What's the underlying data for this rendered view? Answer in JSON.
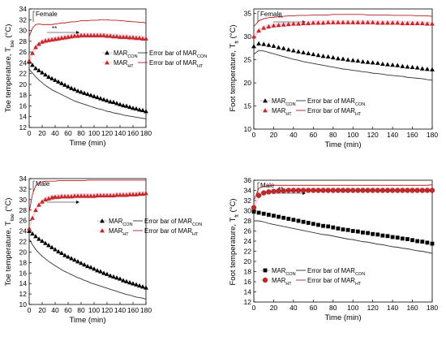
{
  "colors": {
    "con": "#000000",
    "con_err": "#333333",
    "ht": "#c62828",
    "ht_err": "#b71c1c",
    "ht_band": "#f48fb1",
    "axis": "#000000"
  },
  "chart_data": [
    {
      "type": "line",
      "panel_title": "Female",
      "sig_label": "**",
      "xlabel": "Time (min)",
      "ylabel": {
        "main": "Toe temperature, T",
        "sub": "toe",
        "unit": " (°C)"
      },
      "xlim": [
        0,
        180
      ],
      "ylim": [
        12,
        34
      ],
      "xticks": [
        0,
        20,
        40,
        60,
        80,
        100,
        120,
        140,
        160,
        180
      ],
      "yticks": [
        12,
        14,
        16,
        18,
        20,
        22,
        24,
        26,
        28,
        30,
        32,
        34
      ],
      "legend_placement": "center",
      "x": [
        0,
        5,
        10,
        15,
        20,
        25,
        30,
        35,
        40,
        45,
        50,
        55,
        60,
        65,
        70,
        75,
        80,
        85,
        90,
        95,
        100,
        105,
        110,
        115,
        120,
        125,
        130,
        135,
        140,
        145,
        150,
        155,
        160,
        165,
        170,
        175,
        180
      ],
      "series": [
        {
          "name": "MAR",
          "sub": "CON",
          "marker": "triangle",
          "role": "mean",
          "group": "con",
          "values": [
            24.2,
            23.6,
            23.0,
            22.6,
            22.2,
            21.8,
            21.4,
            21.1,
            20.8,
            20.5,
            20.2,
            19.9,
            19.6,
            19.3,
            19.1,
            18.8,
            18.6,
            18.4,
            18.2,
            18.0,
            17.8,
            17.6,
            17.4,
            17.2,
            17.0,
            16.8,
            16.7,
            16.5,
            16.3,
            16.1,
            16.0,
            15.8,
            15.6,
            15.5,
            15.3,
            15.2,
            15.0
          ]
        },
        {
          "name": "Error bar of MAR",
          "sub": "CON",
          "marker": "none",
          "role": "error",
          "group": "con",
          "values": [
            22.8,
            22.1,
            21.4,
            20.8,
            20.3,
            19.8,
            19.4,
            19.0,
            18.7,
            18.4,
            18.1,
            17.8,
            17.5,
            17.2,
            16.9,
            16.7,
            16.5,
            16.3,
            16.1,
            15.9,
            15.7,
            15.5,
            15.4,
            15.2,
            15.0,
            14.9,
            14.7,
            14.6,
            14.5,
            14.3,
            14.2,
            14.1,
            14.0,
            13.9,
            13.8,
            13.7,
            13.6
          ]
        },
        {
          "name": "MAR",
          "sub": "HT",
          "marker": "triangle",
          "role": "mean",
          "group": "ht",
          "values": [
            24.4,
            25.8,
            26.9,
            27.5,
            27.9,
            28.1,
            28.2,
            28.3,
            28.4,
            28.5,
            28.6,
            28.7,
            28.8,
            28.9,
            29.0,
            29.0,
            29.1,
            29.1,
            29.1,
            29.1,
            29.1,
            29.1,
            29.1,
            29.1,
            29.0,
            29.0,
            28.9,
            28.9,
            28.8,
            28.8,
            28.8,
            28.7,
            28.7,
            28.6,
            28.6,
            28.5,
            28.5
          ]
        },
        {
          "name": "Error bar of MAR",
          "sub": "HT",
          "marker": "none",
          "role": "error",
          "group": "ht",
          "values": [
            28.9,
            30.4,
            31.1,
            31.2,
            31.1,
            31.1,
            31.1,
            31.1,
            31.2,
            31.3,
            31.4,
            31.4,
            31.5,
            31.6,
            31.6,
            31.7,
            31.8,
            31.8,
            31.8,
            31.9,
            31.9,
            31.9,
            32.0,
            32.0,
            32.0,
            31.9,
            31.9,
            31.9,
            31.8,
            31.8,
            31.7,
            31.7,
            31.6,
            31.6,
            31.5,
            31.5,
            31.4
          ]
        }
      ]
    },
    {
      "type": "line",
      "panel_title": "Female",
      "sig_label": "**",
      "xlabel": "Time (min)",
      "ylabel": {
        "main": "Foot temperature, T",
        "sub": "ft",
        "unit": " (°C)"
      },
      "xlim": [
        0,
        180
      ],
      "ylim": [
        10,
        36
      ],
      "xticks": [
        0,
        20,
        40,
        60,
        80,
        100,
        120,
        140,
        160,
        180
      ],
      "yticks": [
        10,
        15,
        20,
        25,
        30,
        35
      ],
      "legend_placement": "lower-left",
      "x": [
        0,
        5,
        10,
        15,
        20,
        25,
        30,
        35,
        40,
        45,
        50,
        55,
        60,
        65,
        70,
        75,
        80,
        85,
        90,
        95,
        100,
        105,
        110,
        115,
        120,
        125,
        130,
        135,
        140,
        145,
        150,
        155,
        160,
        165,
        170,
        175,
        180
      ],
      "series": [
        {
          "name": "MAR",
          "sub": "CON",
          "marker": "triangle",
          "role": "mean",
          "group": "con",
          "values": [
            27.9,
            28.5,
            28.4,
            28.2,
            28.0,
            27.7,
            27.5,
            27.2,
            27.0,
            26.8,
            26.6,
            26.4,
            26.2,
            26.0,
            25.8,
            25.7,
            25.5,
            25.3,
            25.2,
            25.0,
            24.9,
            24.8,
            24.6,
            24.5,
            24.4,
            24.3,
            24.1,
            24.0,
            23.9,
            23.8,
            23.6,
            23.5,
            23.4,
            23.3,
            23.1,
            23.0,
            22.9
          ]
        },
        {
          "name": "Error bar of MAR",
          "sub": "CON",
          "marker": "none",
          "role": "error",
          "group": "con",
          "values": [
            26.2,
            27.0,
            26.9,
            26.6,
            26.3,
            26.0,
            25.7,
            25.4,
            25.1,
            24.9,
            24.6,
            24.4,
            24.2,
            24.0,
            23.8,
            23.6,
            23.4,
            23.2,
            23.0,
            22.9,
            22.7,
            22.6,
            22.4,
            22.3,
            22.1,
            22.0,
            21.9,
            21.7,
            21.6,
            21.5,
            21.4,
            21.2,
            21.1,
            21.0,
            20.9,
            20.7,
            20.6
          ]
        },
        {
          "name": "MAR",
          "sub": "HT",
          "marker": "triangle",
          "role": "mean",
          "group": "ht",
          "values": [
            30.0,
            31.3,
            31.9,
            32.2,
            32.4,
            32.5,
            32.6,
            32.7,
            32.8,
            32.8,
            32.9,
            32.9,
            33.0,
            33.0,
            33.0,
            33.1,
            33.1,
            33.1,
            33.1,
            33.1,
            33.1,
            33.1,
            33.1,
            33.1,
            33.1,
            33.0,
            33.0,
            33.0,
            33.0,
            33.0,
            32.9,
            32.9,
            32.9,
            32.9,
            32.9,
            32.8,
            32.8
          ]
        },
        {
          "name": "Error bar of MAR",
          "sub": "HT",
          "marker": "none",
          "role": "error",
          "group": "ht",
          "values": [
            32.2,
            33.4,
            33.9,
            34.1,
            34.2,
            34.3,
            34.4,
            34.5,
            34.5,
            34.6,
            34.6,
            34.6,
            34.7,
            34.7,
            34.7,
            34.7,
            34.8,
            34.8,
            34.8,
            34.8,
            34.8,
            34.8,
            34.8,
            34.7,
            34.7,
            34.7,
            34.7,
            34.7,
            34.6,
            34.6,
            34.6,
            34.6,
            34.6,
            34.5,
            34.5,
            34.5,
            34.4
          ]
        }
      ]
    },
    {
      "type": "line",
      "panel_title": "Male",
      "sig_label": "**",
      "xlabel": "Time (min)",
      "ylabel": {
        "main": "Toe temperature, T",
        "sub": "toe",
        "unit": " (°C)"
      },
      "xlim": [
        0,
        180
      ],
      "ylim": [
        10,
        34
      ],
      "xticks": [
        0,
        20,
        40,
        60,
        80,
        100,
        120,
        140,
        160,
        180
      ],
      "yticks": [
        10,
        12,
        14,
        16,
        18,
        20,
        22,
        24,
        26,
        28,
        30,
        32,
        34
      ],
      "legend_placement": "center",
      "x": [
        0,
        5,
        10,
        15,
        20,
        25,
        30,
        35,
        40,
        45,
        50,
        55,
        60,
        65,
        70,
        75,
        80,
        85,
        90,
        95,
        100,
        105,
        110,
        115,
        120,
        125,
        130,
        135,
        140,
        145,
        150,
        155,
        160,
        165,
        170,
        175,
        180
      ],
      "series": [
        {
          "name": "MAR",
          "sub": "CON",
          "marker": "triangle",
          "role": "mean",
          "group": "con",
          "values": [
            24.0,
            23.5,
            23.0,
            22.5,
            22.1,
            21.7,
            21.3,
            20.9,
            20.5,
            20.1,
            19.8,
            19.4,
            19.1,
            18.8,
            18.5,
            18.2,
            17.9,
            17.6,
            17.3,
            17.1,
            16.8,
            16.5,
            16.3,
            16.0,
            15.8,
            15.5,
            15.3,
            15.1,
            14.9,
            14.6,
            14.4,
            14.2,
            14.0,
            13.8,
            13.6,
            13.4,
            13.2
          ]
        },
        {
          "name": "Error bar of MAR",
          "sub": "CON",
          "marker": "none",
          "role": "error",
          "group": "con",
          "values": [
            22.5,
            21.4,
            20.5,
            19.8,
            19.2,
            18.7,
            18.2,
            17.8,
            17.4,
            17.0,
            16.6,
            16.3,
            16.0,
            15.7,
            15.4,
            15.1,
            14.9,
            14.6,
            14.4,
            14.1,
            13.9,
            13.7,
            13.5,
            13.3,
            13.1,
            12.9,
            12.7,
            12.5,
            12.3,
            12.1,
            11.9,
            11.8,
            11.6,
            11.4,
            11.3,
            11.2,
            11.0
          ]
        },
        {
          "name": "MAR",
          "sub": "HT",
          "marker": "triangle",
          "role": "mean",
          "group": "ht",
          "values": [
            24.5,
            26.5,
            28.0,
            29.0,
            29.6,
            30.0,
            30.2,
            30.4,
            30.5,
            30.5,
            30.6,
            30.6,
            30.6,
            30.6,
            30.7,
            30.7,
            30.7,
            30.7,
            30.7,
            30.7,
            30.7,
            30.8,
            30.8,
            30.8,
            30.8,
            30.8,
            30.8,
            30.9,
            30.9,
            30.9,
            30.9,
            31.0,
            31.0,
            31.0,
            31.1,
            31.1,
            31.2
          ]
        },
        {
          "name": "Error bar of MAR",
          "sub": "HT",
          "marker": "none",
          "role": "error",
          "group": "ht",
          "values": [
            27.6,
            31.0,
            32.6,
            33.2,
            33.4,
            33.5,
            33.5,
            33.5,
            33.5,
            33.6,
            33.6,
            33.6,
            33.6,
            33.6,
            33.6,
            33.6,
            33.6,
            33.6,
            33.7,
            33.7,
            33.7,
            33.7,
            33.7,
            33.7,
            33.7,
            33.7,
            33.7,
            33.7,
            33.7,
            33.7,
            33.7,
            33.7,
            33.7,
            33.7,
            33.7,
            33.7,
            33.7
          ]
        }
      ]
    },
    {
      "type": "line",
      "panel_title": "Male",
      "sig_label": "**",
      "xlabel": "Time (min)",
      "ylabel": {
        "main": "Foot temperature, T",
        "sub": "ft",
        "unit": " (°C)"
      },
      "xlim": [
        0,
        180
      ],
      "ylim": [
        12,
        36
      ],
      "xticks": [
        0,
        20,
        40,
        60,
        80,
        100,
        120,
        140,
        160,
        180
      ],
      "yticks": [
        12,
        14,
        16,
        18,
        20,
        22,
        24,
        26,
        28,
        30,
        32,
        34,
        36
      ],
      "legend_placement": "lower-left",
      "x": [
        0,
        5,
        10,
        15,
        20,
        25,
        30,
        35,
        40,
        45,
        50,
        55,
        60,
        65,
        70,
        75,
        80,
        85,
        90,
        95,
        100,
        105,
        110,
        115,
        120,
        125,
        130,
        135,
        140,
        145,
        150,
        155,
        160,
        165,
        170,
        175,
        180
      ],
      "series": [
        {
          "name": "MAR",
          "sub": "CON",
          "marker": "square",
          "role": "mean",
          "group": "con",
          "values": [
            29.8,
            29.6,
            29.4,
            29.2,
            29.0,
            28.8,
            28.6,
            28.4,
            28.2,
            28.0,
            27.8,
            27.6,
            27.4,
            27.2,
            27.0,
            26.9,
            26.7,
            26.5,
            26.3,
            26.2,
            26.0,
            25.9,
            25.7,
            25.6,
            25.4,
            25.3,
            25.1,
            25.0,
            24.8,
            24.7,
            24.5,
            24.4,
            24.2,
            24.0,
            23.9,
            23.7,
            23.5
          ]
        },
        {
          "name": "Error bar of MAR",
          "sub": "CON",
          "marker": "none",
          "role": "error",
          "group": "con",
          "values": [
            28.0,
            28.0,
            27.8,
            27.5,
            27.3,
            27.1,
            26.9,
            26.7,
            26.5,
            26.3,
            26.1,
            25.9,
            25.7,
            25.5,
            25.3,
            25.2,
            25.0,
            24.8,
            24.6,
            24.4,
            24.3,
            24.1,
            23.9,
            23.8,
            23.6,
            23.4,
            23.3,
            23.1,
            22.9,
            22.8,
            22.6,
            22.5,
            22.3,
            22.1,
            22.0,
            21.8,
            21.6
          ]
        },
        {
          "name": "MAR",
          "sub": "HT",
          "marker": "circle",
          "role": "mean",
          "group": "ht",
          "values": [
            30.6,
            33.0,
            33.5,
            33.7,
            33.8,
            33.9,
            33.9,
            34.0,
            34.0,
            34.0,
            34.0,
            34.0,
            34.0,
            34.0,
            34.0,
            34.0,
            34.0,
            34.0,
            34.0,
            34.0,
            34.0,
            34.0,
            34.0,
            34.0,
            34.0,
            34.0,
            34.0,
            34.0,
            34.0,
            34.0,
            34.0,
            34.0,
            34.0,
            34.0,
            34.0,
            34.0,
            34.0
          ]
        },
        {
          "name": "Error bar of MAR",
          "sub": "HT",
          "marker": "none",
          "role": "error",
          "group": "ht",
          "values": [
            32.0,
            34.4,
            34.8,
            34.9,
            35.0,
            35.0,
            35.0,
            35.0,
            35.0,
            35.0,
            35.0,
            35.0,
            35.0,
            35.0,
            35.0,
            35.0,
            35.0,
            35.0,
            35.0,
            35.0,
            35.0,
            35.0,
            35.0,
            35.0,
            35.0,
            35.0,
            35.0,
            35.0,
            35.0,
            35.0,
            35.0,
            35.0,
            35.0,
            35.0,
            35.0,
            35.0,
            35.1
          ]
        }
      ]
    }
  ]
}
